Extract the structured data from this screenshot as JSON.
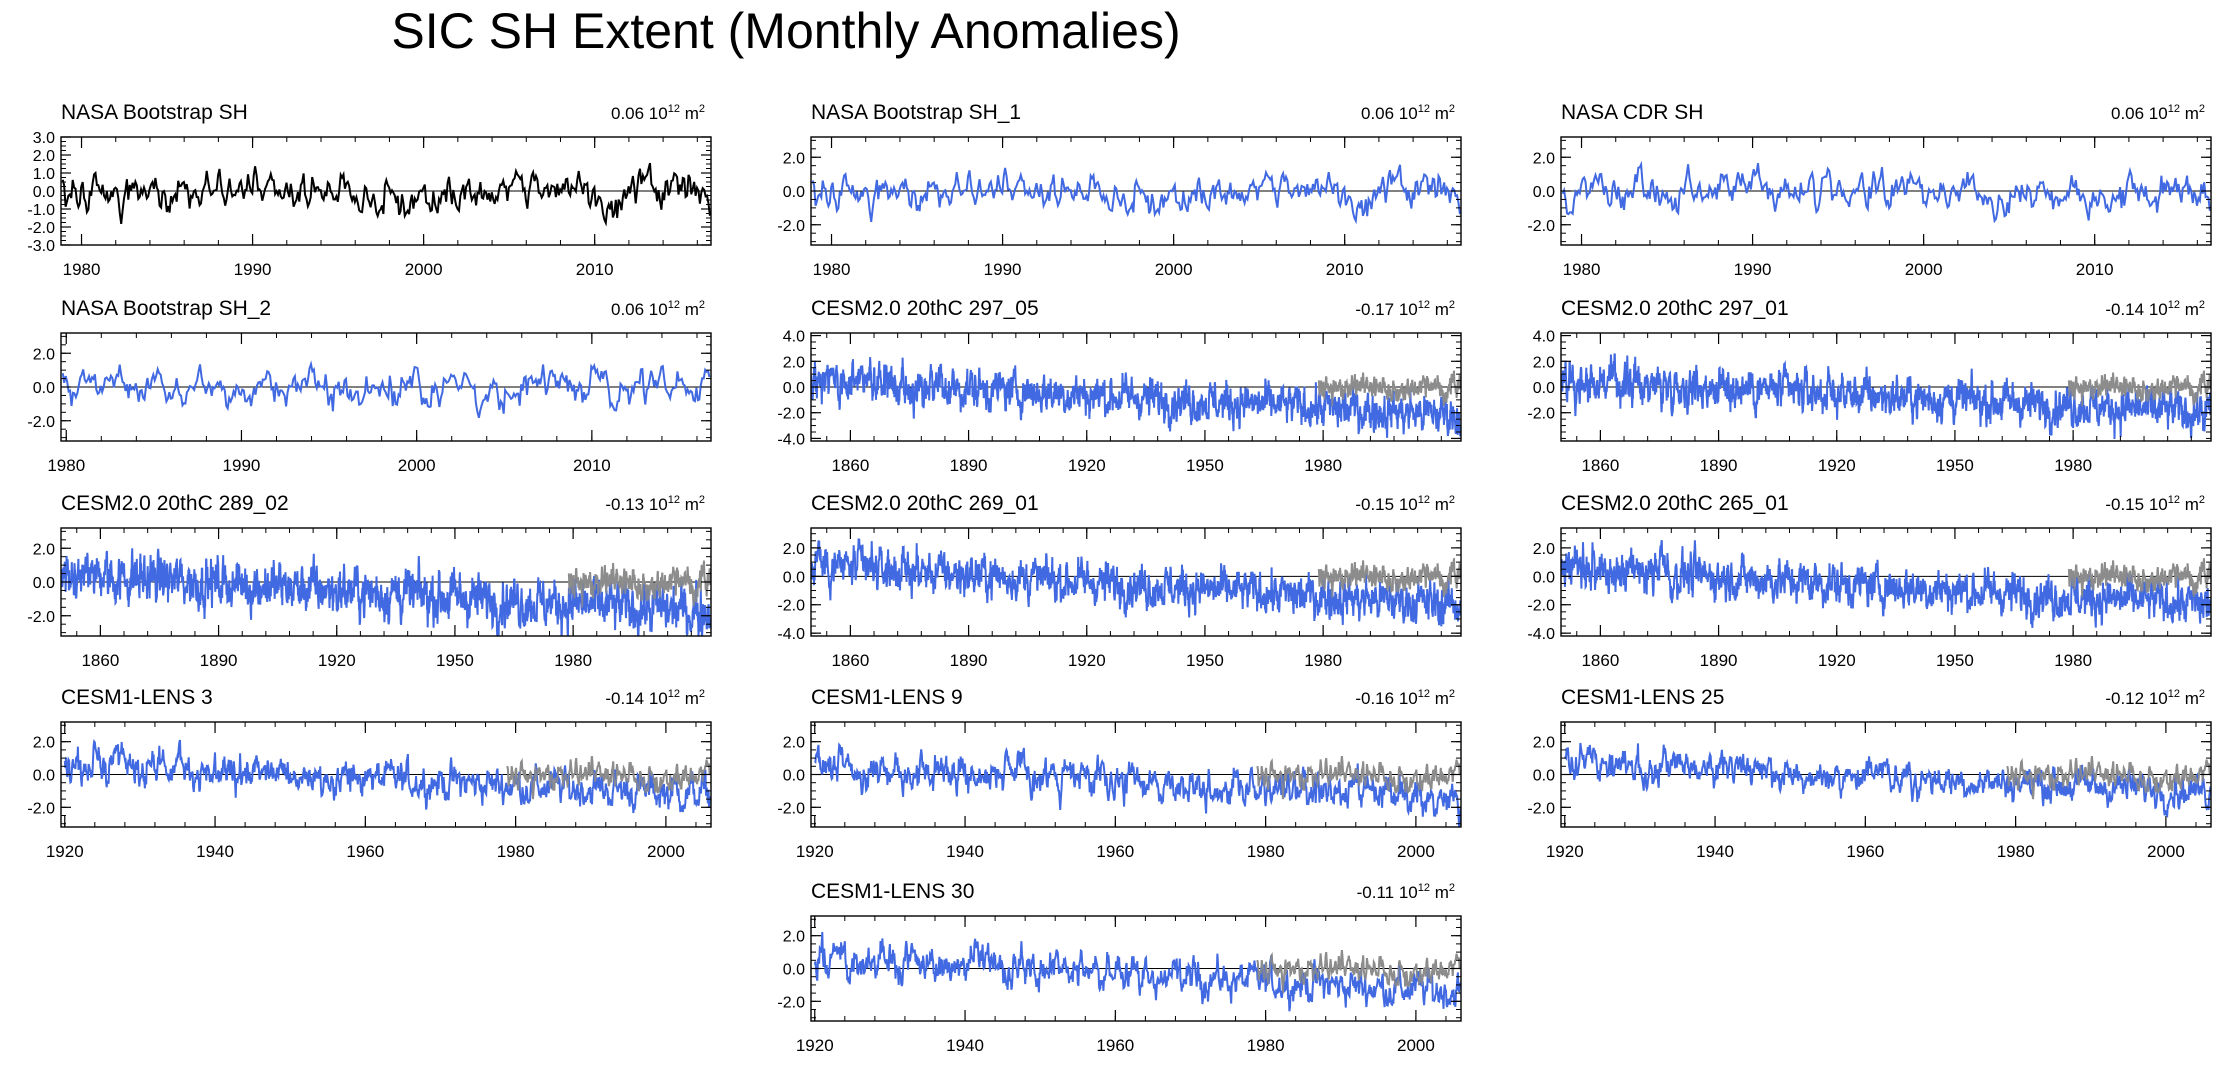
{
  "title": "SIC SH Extent (Monthly Anomalies)",
  "colors": {
    "obs": "#000000",
    "model": "#4169e1",
    "obs_overlay": "#8c8c8c",
    "axis": "#000000"
  },
  "unit_base": "10",
  "unit_exp": "12",
  "unit_m": "m",
  "unit_sq": "2",
  "chart_data": [
    {
      "type": "line",
      "title": "NASA Bootstrap SH",
      "trend": "0.06",
      "series_color": "obs",
      "overlay": false,
      "xlim": [
        1978.8,
        2016.8
      ],
      "ylim": [
        -3.0,
        3.0
      ],
      "yticks": [
        "3.0",
        "2.0",
        "1.0",
        "0.0",
        "-1.0",
        "-2.0",
        "-3.0"
      ],
      "ytick_values": [
        3,
        2,
        1,
        0,
        -1,
        -2,
        -3
      ],
      "xticks": [
        1980,
        1990,
        2000,
        2010
      ],
      "start": 1978.9,
      "end": 2016.7,
      "trend_start": 0,
      "trend_end": 0,
      "amp": 0.55,
      "seed": 11
    },
    {
      "type": "line",
      "title": "NASA Bootstrap SH_1",
      "trend": "0.06",
      "series_color": "model",
      "overlay": false,
      "xlim": [
        1978.8,
        2016.8
      ],
      "ylim": [
        -3.2,
        3.2
      ],
      "yticks": [
        "2.0",
        "0.0",
        "-2.0"
      ],
      "ytick_values": [
        2,
        0,
        -2
      ],
      "xticks": [
        1980,
        1990,
        2000,
        2010
      ],
      "start": 1978.9,
      "end": 2016.7,
      "trend_start": 0,
      "trend_end": 0,
      "amp": 0.55,
      "seed": 11
    },
    {
      "type": "line",
      "title": "NASA CDR SH",
      "trend": "0.06",
      "series_color": "model",
      "overlay": false,
      "xlim": [
        1978.8,
        2016.8
      ],
      "ylim": [
        -3.2,
        3.2
      ],
      "yticks": [
        "2.0",
        "0.0",
        "-2.0"
      ],
      "ytick_values": [
        2,
        0,
        -2
      ],
      "xticks": [
        1980,
        1990,
        2000,
        2010
      ],
      "start": 1978.9,
      "end": 2016.7,
      "trend_start": 0,
      "trend_end": 0,
      "amp": 0.55,
      "seed": 12
    },
    {
      "type": "line",
      "title": "NASA Bootstrap SH_2",
      "trend": "0.06",
      "series_color": "model",
      "overlay": false,
      "xlim": [
        1979.7,
        2016.8
      ],
      "ylim": [
        -3.2,
        3.2
      ],
      "yticks": [
        "2.0",
        "0.0",
        "-2.0"
      ],
      "ytick_values": [
        2,
        0,
        -2
      ],
      "xticks": [
        1980,
        1990,
        2000,
        2010
      ],
      "start": 1979.8,
      "end": 2016.7,
      "trend_start": 0,
      "trend_end": 0,
      "amp": 0.55,
      "seed": 13
    },
    {
      "type": "line",
      "title": "CESM2.0 20thC 297_05",
      "trend": "-0.17",
      "series_color": "model",
      "overlay": true,
      "xlim": [
        1850,
        2015
      ],
      "ylim": [
        -4.2,
        4.2
      ],
      "yticks": [
        "4.0",
        "2.0",
        "0.0",
        "-2.0",
        "-4.0"
      ],
      "ytick_values": [
        4,
        2,
        0,
        -2,
        -4
      ],
      "xticks": [
        1860,
        1890,
        1920,
        1950,
        1980
      ],
      "start": 1850,
      "end": 2014.9,
      "trend_start": 0.6,
      "trend_end": -2.2,
      "amp": 0.75,
      "seed": 21
    },
    {
      "type": "line",
      "title": "CESM2.0 20thC 297_01",
      "trend": "-0.14",
      "series_color": "model",
      "overlay": true,
      "xlim": [
        1850,
        2015
      ],
      "ylim": [
        -4.2,
        4.2
      ],
      "yticks": [
        "4.0",
        "2.0",
        "0.0",
        "-2.0"
      ],
      "ytick_values": [
        4,
        2,
        0,
        -2
      ],
      "xticks": [
        1860,
        1890,
        1920,
        1950,
        1980
      ],
      "start": 1850,
      "end": 2014.9,
      "trend_start": 0.6,
      "trend_end": -2.0,
      "amp": 0.75,
      "seed": 22
    },
    {
      "type": "line",
      "title": "CESM2.0 20thC 289_02",
      "trend": "-0.13",
      "series_color": "model",
      "overlay": true,
      "xlim": [
        1850,
        2015
      ],
      "ylim": [
        -3.2,
        3.2
      ],
      "yticks": [
        "2.0",
        "0.0",
        "-2.0"
      ],
      "ytick_values": [
        2,
        0,
        -2
      ],
      "xticks": [
        1860,
        1890,
        1920,
        1950,
        1980
      ],
      "start": 1850,
      "end": 2014.9,
      "trend_start": 0.5,
      "trend_end": -1.8,
      "amp": 0.7,
      "seed": 23
    },
    {
      "type": "line",
      "title": "CESM2.0 20thC 269_01",
      "trend": "-0.15",
      "series_color": "model",
      "overlay": true,
      "xlim": [
        1850,
        2015
      ],
      "ylim": [
        -4.2,
        3.4
      ],
      "yticks": [
        "2.0",
        "0.0",
        "-2.0",
        "-4.0"
      ],
      "ytick_values": [
        2,
        0,
        -2,
        -4
      ],
      "xticks": [
        1860,
        1890,
        1920,
        1950,
        1980
      ],
      "start": 1850,
      "end": 2014.9,
      "trend_start": 0.8,
      "trend_end": -2.0,
      "amp": 0.7,
      "seed": 24
    },
    {
      "type": "line",
      "title": "CESM2.0 20thC 265_01",
      "trend": "-0.15",
      "series_color": "model",
      "overlay": true,
      "xlim": [
        1850,
        2015
      ],
      "ylim": [
        -4.2,
        3.4
      ],
      "yticks": [
        "2.0",
        "0.0",
        "-2.0",
        "-4.0"
      ],
      "ytick_values": [
        2,
        0,
        -2,
        -4
      ],
      "xticks": [
        1860,
        1890,
        1920,
        1950,
        1980
      ],
      "start": 1850,
      "end": 2014.9,
      "trend_start": 0.6,
      "trend_end": -2.0,
      "amp": 0.7,
      "seed": 25
    },
    {
      "type": "line",
      "title": "CESM1-LENS 3",
      "trend": "-0.14",
      "series_color": "model",
      "overlay": true,
      "xlim": [
        1919.5,
        2006
      ],
      "ylim": [
        -3.2,
        3.2
      ],
      "yticks": [
        "2.0",
        "0.0",
        "-2.0"
      ],
      "ytick_values": [
        2,
        0,
        -2
      ],
      "xticks": [
        1920,
        1940,
        1960,
        1980,
        2000
      ],
      "start": 1920,
      "end": 2005.9,
      "trend_start": 0.6,
      "trend_end": -1.2,
      "amp": 0.55,
      "seed": 31
    },
    {
      "type": "line",
      "title": "CESM1-LENS 9",
      "trend": "-0.16",
      "series_color": "model",
      "overlay": true,
      "xlim": [
        1919.5,
        2006
      ],
      "ylim": [
        -3.2,
        3.2
      ],
      "yticks": [
        "2.0",
        "0.0",
        "-2.0"
      ],
      "ytick_values": [
        2,
        0,
        -2
      ],
      "xticks": [
        1920,
        1940,
        1960,
        1980,
        2000
      ],
      "start": 1920,
      "end": 2005.9,
      "trend_start": 0.7,
      "trend_end": -1.6,
      "amp": 0.55,
      "seed": 32
    },
    {
      "type": "line",
      "title": "CESM1-LENS 25",
      "trend": "-0.12",
      "series_color": "model",
      "overlay": true,
      "xlim": [
        1919.5,
        2006
      ],
      "ylim": [
        -3.2,
        3.2
      ],
      "yticks": [
        "2.0",
        "0.0",
        "-2.0"
      ],
      "ytick_values": [
        2,
        0,
        -2
      ],
      "xticks": [
        1920,
        1940,
        1960,
        1980,
        2000
      ],
      "start": 1920,
      "end": 2005.9,
      "trend_start": 0.6,
      "trend_end": -1.0,
      "amp": 0.5,
      "seed": 33
    },
    {
      "type": "line",
      "title": "CESM1-LENS 30",
      "trend": "-0.11",
      "series_color": "model",
      "overlay": true,
      "xlim": [
        1919.5,
        2006
      ],
      "ylim": [
        -3.2,
        3.2
      ],
      "yticks": [
        "2.0",
        "0.0",
        "-2.0"
      ],
      "ytick_values": [
        2,
        0,
        -2
      ],
      "xticks": [
        1920,
        1940,
        1960,
        1980,
        2000
      ],
      "start": 1920,
      "end": 2005.9,
      "trend_start": 0.6,
      "trend_end": -1.4,
      "amp": 0.55,
      "seed": 34
    }
  ]
}
